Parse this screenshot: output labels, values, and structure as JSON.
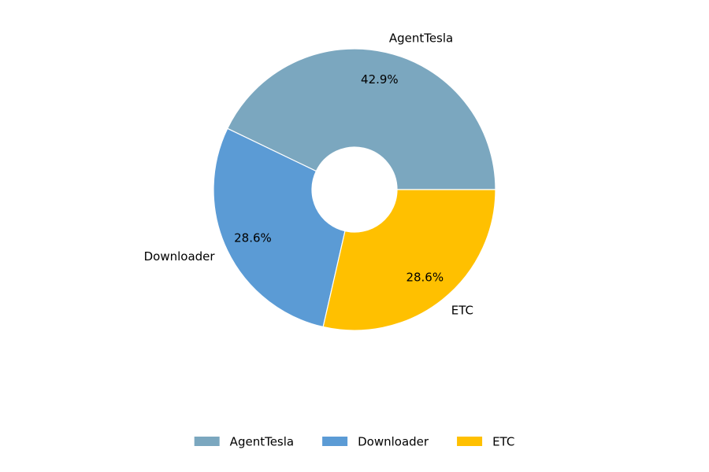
{
  "chart_data": {
    "type": "pie",
    "categories": [
      "AgentTesla",
      "Downloader",
      "ETC"
    ],
    "values": [
      42.9,
      28.6,
      28.6
    ],
    "value_labels": [
      "42.9%",
      "28.6%",
      "28.6%"
    ],
    "colors": [
      "#7ba7bf",
      "#5b9bd5",
      "#ffc000"
    ],
    "legend": "bottom"
  }
}
